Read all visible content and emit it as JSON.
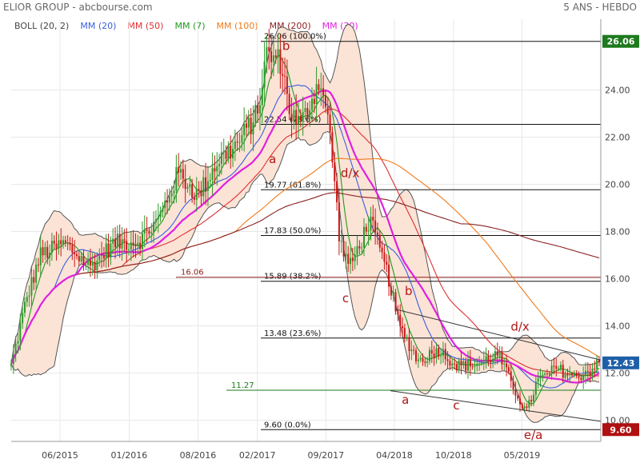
{
  "header": {
    "title": "ELIOR GROUP - abcbourse.com",
    "period": "5 ANS - HEBDO"
  },
  "legend": [
    {
      "label": "BOLL (20, 2)",
      "color": "#444444"
    },
    {
      "label": "MM (20)",
      "color": "#3a5fe0"
    },
    {
      "label": "MM (50)",
      "color": "#e03030"
    },
    {
      "label": "MM (7)",
      "color": "#1f9a1f"
    },
    {
      "label": "MM (100)",
      "color": "#f07a1a"
    },
    {
      "label": "MM (200)",
      "color": "#8b2222"
    },
    {
      "label": "MM (30)",
      "color": "#e020e0"
    }
  ],
  "colors": {
    "bollinger_fill": "#fbe3d6",
    "up_candle": "#2a9a2a",
    "down_candle": "#c81818",
    "current_tag": "#1e5fa8",
    "high_tag": "#1d7a1d",
    "low_tag": "#b01010",
    "annotation": "#b01818",
    "grid": "#e8e8e8"
  },
  "chart_data": {
    "type": "candlestick",
    "title": "ELIOR GROUP - abcbourse.com",
    "subtitle": "5 ANS - HEBDO",
    "ylim": [
      9.1,
      27.0
    ],
    "y_ticks": [
      "10.00",
      "12.00",
      "14.00",
      "16.00",
      "18.00",
      "20.00",
      "22.00",
      "24.00"
    ],
    "x_ticks": [
      "06/2015",
      "01/2016",
      "08/2016",
      "02/2017",
      "09/2017",
      "04/2018",
      "10/2018",
      "05/2019"
    ],
    "price_anchors": [
      [
        "2015-01-01",
        12.3
      ],
      [
        "2015-02-15",
        15.0
      ],
      [
        "2015-04-01",
        17.0
      ],
      [
        "2015-06-15",
        17.5
      ],
      [
        "2015-09-01",
        16.5
      ],
      [
        "2015-11-15",
        17.5
      ],
      [
        "2016-02-01",
        17.6
      ],
      [
        "2016-04-01",
        18.5
      ],
      [
        "2016-06-01",
        20.5
      ],
      [
        "2016-08-01",
        19.5
      ],
      [
        "2016-10-01",
        21.0
      ],
      [
        "2016-12-01",
        21.7
      ],
      [
        "2017-02-01",
        23.0
      ],
      [
        "2017-03-01",
        25.5
      ],
      [
        "2017-04-15",
        25.2
      ],
      [
        "2017-05-15",
        23.0
      ],
      [
        "2017-06-15",
        22.5
      ],
      [
        "2017-08-15",
        24.5
      ],
      [
        "2017-09-15",
        22.0
      ],
      [
        "2017-10-15",
        17.5
      ],
      [
        "2017-11-15",
        16.5
      ],
      [
        "2018-01-15",
        18.5
      ],
      [
        "2018-03-15",
        16.0
      ],
      [
        "2018-04-15",
        14.0
      ],
      [
        "2018-06-15",
        12.5
      ],
      [
        "2018-08-15",
        13.0
      ],
      [
        "2018-10-15",
        12.3
      ],
      [
        "2018-12-15",
        12.4
      ],
      [
        "2019-02-15",
        12.8
      ],
      [
        "2019-04-01",
        11.5
      ],
      [
        "2019-05-15",
        10.3
      ],
      [
        "2019-06-15",
        11.6
      ],
      [
        "2019-08-15",
        12.2
      ],
      [
        "2019-10-15",
        11.8
      ],
      [
        "2019-12-31",
        12.43
      ]
    ],
    "series": [
      {
        "name": "MM (20)",
        "period": 20,
        "color": "#3a5fe0"
      },
      {
        "name": "MM (50)",
        "period": 50,
        "color": "#e03030"
      },
      {
        "name": "MM (7)",
        "period": 7,
        "color": "#1f9a1f"
      },
      {
        "name": "MM (100)",
        "period": 100,
        "color": "#f07a1a"
      },
      {
        "name": "MM (200)",
        "period": 200,
        "color": "#8b2222"
      },
      {
        "name": "MM (30)",
        "period": 30,
        "color": "#e020e0"
      }
    ],
    "bollinger": {
      "name": "BOLL (20, 2)",
      "period": 20,
      "k": 2
    },
    "fibonacci_levels": [
      {
        "value": 26.06,
        "label": "26.06  (100.0%)"
      },
      {
        "value": 22.54,
        "label": "22.54  (78.6%)"
      },
      {
        "value": 19.77,
        "label": "19.77  (61.8%)"
      },
      {
        "value": 17.83,
        "label": "17.83  (50.0%)"
      },
      {
        "value": 15.89,
        "label": "15.89  (38.2%)"
      },
      {
        "value": 13.48,
        "label": "13.48  (23.6%)"
      },
      {
        "value": 9.6,
        "label": "9.60  (0.0%)"
      }
    ],
    "support_lines": [
      {
        "value": 16.06,
        "label": "16.06",
        "color": "#8b1a1a"
      },
      {
        "value": 11.27,
        "label": "11.27",
        "color": "#1d7a1d"
      }
    ],
    "right_tags": [
      {
        "value": 26.06,
        "label": "26.06",
        "color": "#1d7a1d"
      },
      {
        "value": 12.43,
        "label": "12.43",
        "color": "#1e5fa8"
      },
      {
        "value": 9.6,
        "label": "9.60",
        "color": "#b01010"
      }
    ],
    "wave_labels": [
      {
        "text": "b",
        "date": "2017-05-01",
        "value": 25.7
      },
      {
        "text": "a",
        "date": "2017-03-20",
        "value": 20.9
      },
      {
        "text": "d/x",
        "date": "2017-11-15",
        "value": 20.3
      },
      {
        "text": "c",
        "date": "2017-11-01",
        "value": 15.0
      },
      {
        "text": "b",
        "date": "2018-05-15",
        "value": 15.3
      },
      {
        "text": "d/x",
        "date": "2019-04-25",
        "value": 13.8
      },
      {
        "text": "a",
        "date": "2018-05-05",
        "value": 10.7
      },
      {
        "text": "c",
        "date": "2018-10-10",
        "value": 10.45
      },
      {
        "text": "e/a",
        "date": "2019-06-05",
        "value": 9.2
      }
    ],
    "trend_lines": [
      {
        "from": [
          "2018-03-20",
          11.25
        ],
        "to": [
          "2019-12-31",
          9.95
        ]
      },
      {
        "from": [
          "2018-04-05",
          14.7
        ],
        "to": [
          "2019-12-31",
          12.55
        ]
      }
    ]
  }
}
